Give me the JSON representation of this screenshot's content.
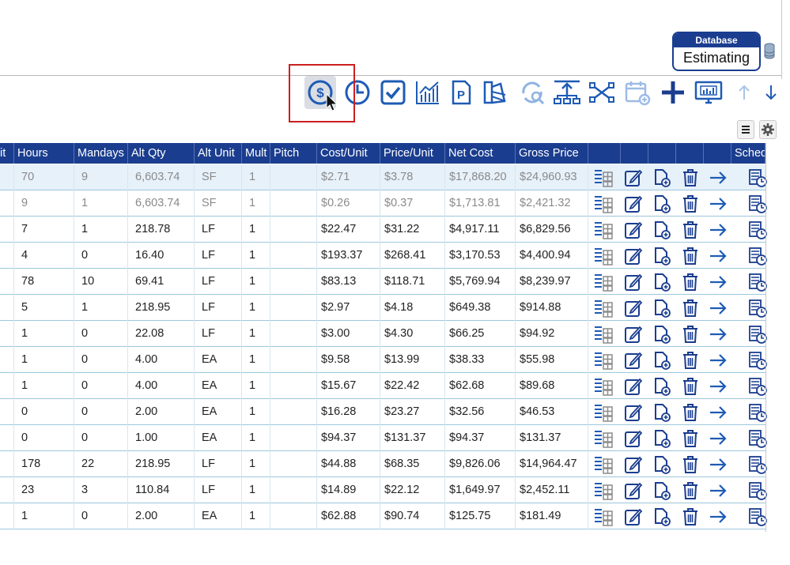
{
  "database": {
    "label": "Database",
    "value": "Estimating"
  },
  "toolbar": {
    "buttons": [
      {
        "name": "pricing-icon"
      },
      {
        "name": "clock-icon"
      },
      {
        "name": "checkbox-icon"
      },
      {
        "name": "chart-icon"
      },
      {
        "name": "p-document-icon"
      },
      {
        "name": "color-swatch-icon"
      },
      {
        "name": "refresh-search-icon"
      },
      {
        "name": "upload-tree-icon"
      },
      {
        "name": "shuffle-network-icon"
      },
      {
        "name": "calendar-add-icon"
      },
      {
        "name": "plus-icon"
      },
      {
        "name": "monitor-icon"
      },
      {
        "name": "arrow-up-icon"
      },
      {
        "name": "arrow-down-icon"
      }
    ]
  },
  "grid": {
    "columns": [
      "it",
      "Hours",
      "Mandays",
      "Alt Qty",
      "Alt Unit",
      "Mult",
      "Pitch",
      "Cost/Unit",
      "Price/Unit",
      "Net Cost",
      "Gross Price",
      "",
      "",
      "",
      "",
      "",
      "Sched"
    ],
    "rows": [
      [
        "",
        "70",
        "9",
        "6,603.74",
        "SF",
        "1",
        "",
        "$2.71",
        "$3.78",
        "$17,868.20",
        "$24,960.93"
      ],
      [
        "",
        "9",
        "1",
        "6,603.74",
        "SF",
        "1",
        "",
        "$0.26",
        "$0.37",
        "$1,713.81",
        "$2,421.32"
      ],
      [
        "",
        "7",
        "1",
        "218.78",
        "LF",
        "1",
        "",
        "$22.47",
        "$31.22",
        "$4,917.11",
        "$6,829.56"
      ],
      [
        "",
        "4",
        "0",
        "16.40",
        "LF",
        "1",
        "",
        "$193.37",
        "$268.41",
        "$3,170.53",
        "$4,400.94"
      ],
      [
        "",
        "78",
        "10",
        "69.41",
        "LF",
        "1",
        "",
        "$83.13",
        "$118.71",
        "$5,769.94",
        "$8,239.97"
      ],
      [
        "",
        "5",
        "1",
        "218.95",
        "LF",
        "1",
        "",
        "$2.97",
        "$4.18",
        "$649.38",
        "$914.88"
      ],
      [
        "",
        "1",
        "0",
        "22.08",
        "LF",
        "1",
        "",
        "$3.00",
        "$4.30",
        "$66.25",
        "$94.92"
      ],
      [
        "",
        "1",
        "0",
        "4.00",
        "EA",
        "1",
        "",
        "$9.58",
        "$13.99",
        "$38.33",
        "$55.98"
      ],
      [
        "",
        "1",
        "0",
        "4.00",
        "EA",
        "1",
        "",
        "$15.67",
        "$22.42",
        "$62.68",
        "$89.68"
      ],
      [
        "",
        "0",
        "0",
        "2.00",
        "EA",
        "1",
        "",
        "$16.28",
        "$23.27",
        "$32.56",
        "$46.53"
      ],
      [
        "",
        "0",
        "0",
        "1.00",
        "EA",
        "1",
        "",
        "$94.37",
        "$131.37",
        "$94.37",
        "$131.37"
      ],
      [
        "",
        "178",
        "22",
        "218.95",
        "LF",
        "1",
        "",
        "$44.88",
        "$68.35",
        "$9,826.06",
        "$14,964.47"
      ],
      [
        "",
        "23",
        "3",
        "110.84",
        "LF",
        "1",
        "",
        "$14.89",
        "$22.12",
        "$1,649.97",
        "$2,452.11"
      ],
      [
        "",
        "1",
        "0",
        "2.00",
        "EA",
        "1",
        "",
        "$62.88",
        "$90.74",
        "$125.75",
        "$181.49"
      ]
    ],
    "row_actions": [
      "list-grid-icon",
      "edit-icon",
      "add-document-icon",
      "trash-icon",
      "arrow-right-icon",
      "schedule-icon"
    ]
  },
  "colors": {
    "header": "#1a3d8f",
    "accent": "#1e5bb5",
    "highlight_box": "#cc1f1f"
  }
}
